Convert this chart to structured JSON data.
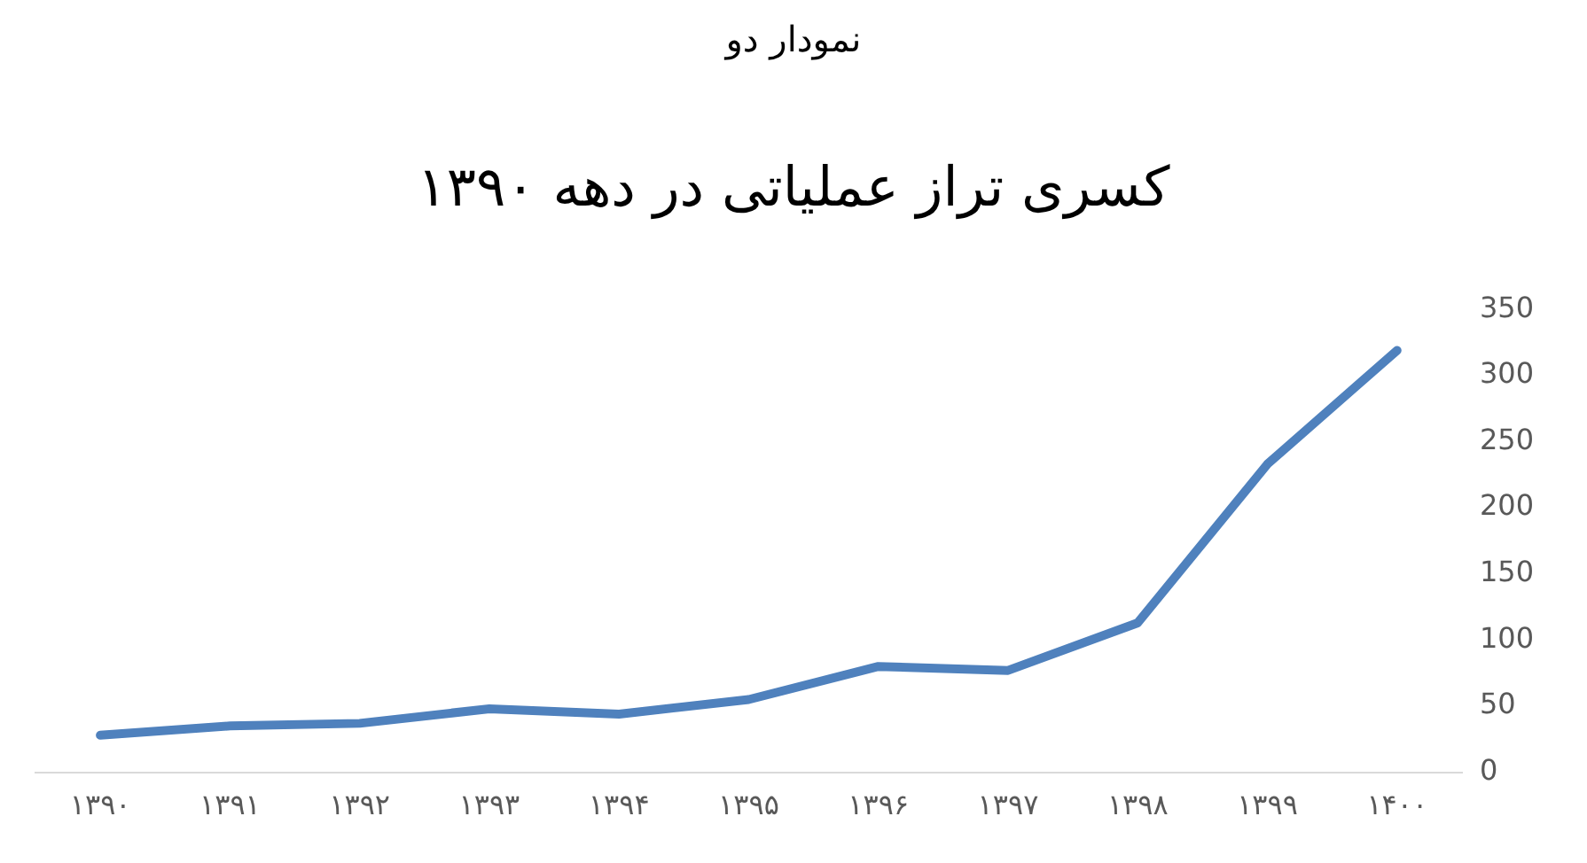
{
  "chart_data": {
    "type": "line",
    "title": "کسری تراز عملیاتی در دهه ۱۳۹۰",
    "annotations": [
      "نمودار دو"
    ],
    "categories": [
      "۱۳۹۰",
      "۱۳۹۱",
      "۱۳۹۲",
      "۱۳۹۳",
      "۱۳۹۴",
      "۱۳۹۵",
      "۱۳۹۶",
      "۱۳۹۷",
      "۱۳۹۸",
      "۱۳۹۹",
      "۱۴۰۰"
    ],
    "series": [
      {
        "color": "#4f81bd",
        "values": [
          28,
          35,
          37,
          48,
          44,
          55,
          80,
          77,
          113,
          233,
          319
        ]
      }
    ],
    "ylim": [
      0,
      350
    ],
    "yticks": [
      0,
      50,
      100,
      150,
      200,
      250,
      300,
      350
    ],
    "grid": false,
    "legend": false,
    "marker": "none",
    "line_style": "solid"
  }
}
